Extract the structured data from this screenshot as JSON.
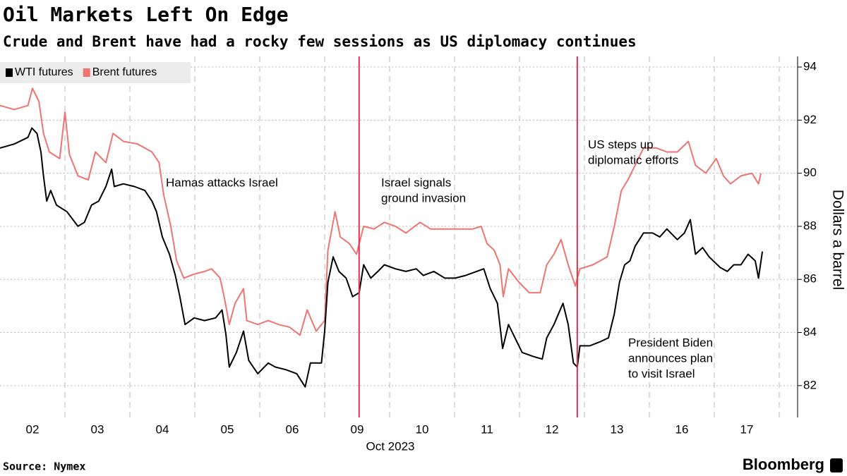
{
  "chart_data": {
    "type": "line",
    "title": "Oil Markets Left On Edge",
    "subtitle": "Crude and Brent have had a rocky few sessions as US diplomacy continues",
    "x_label": "Oct 2023",
    "y_label": "Dollars a barrel",
    "source": "Source: Nymex",
    "brand": "Bloomberg",
    "xlim": [
      0,
      12.25
    ],
    "xticks": [
      {
        "value": 0.5,
        "label": "02"
      },
      {
        "value": 1.5,
        "label": "03"
      },
      {
        "value": 2.5,
        "label": "04"
      },
      {
        "value": 3.5,
        "label": "05"
      },
      {
        "value": 4.5,
        "label": "06"
      },
      {
        "value": 5.5,
        "label": "09"
      },
      {
        "value": 6.5,
        "label": "10"
      },
      {
        "value": 7.5,
        "label": "11"
      },
      {
        "value": 8.5,
        "label": "12"
      },
      {
        "value": 9.5,
        "label": "13"
      },
      {
        "value": 10.5,
        "label": "16"
      },
      {
        "value": 11.5,
        "label": "17"
      }
    ],
    "x_gridlines": [
      1,
      2,
      3,
      4,
      5,
      6,
      7,
      8,
      9,
      10,
      11,
      12
    ],
    "ylim": [
      80.8,
      94.4
    ],
    "yticks": [
      82,
      84,
      86,
      88,
      90,
      92,
      94
    ],
    "grid": true,
    "legend": "top-left",
    "event_lines": [
      5.53,
      8.89
    ],
    "event_color": "#e0324b",
    "annotations": [
      {
        "lines": [
          "Hamas attacks Israel"
        ]
      },
      {
        "lines": [
          "Israel signals",
          "ground invasion"
        ]
      },
      {
        "lines": [
          "US steps up",
          "diplomatic efforts"
        ]
      },
      {
        "lines": [
          "President Biden",
          "announces plan",
          "to visit Israel"
        ]
      }
    ],
    "series": [
      {
        "name": "WTI futures",
        "color": "#000000",
        "x": [
          0,
          0.22,
          0.43,
          0.49,
          0.57,
          0.63,
          0.67,
          0.72,
          0.78,
          0.87,
          1.03,
          1.2,
          1.3,
          1.41,
          1.52,
          1.63,
          1.72,
          1.76,
          1.9,
          2.07,
          2.23,
          2.34,
          2.41,
          2.5,
          2.61,
          2.7,
          2.77,
          2.85,
          2.99,
          3.15,
          3.32,
          3.42,
          3.48,
          3.53,
          3.64,
          3.75,
          3.83,
          3.97,
          4.13,
          4.24,
          4.4,
          4.57,
          4.7,
          4.78,
          4.95,
          5,
          5.05,
          5.13,
          5.22,
          5.33,
          5.43,
          5.53,
          5.6,
          5.71,
          5.82,
          5.92,
          6.09,
          6.25,
          6.41,
          6.52,
          6.68,
          6.85,
          7.01,
          7.17,
          7.34,
          7.45,
          7.55,
          7.66,
          7.74,
          7.83,
          7.93,
          8.04,
          8.21,
          8.35,
          8.42,
          8.53,
          8.67,
          8.75,
          8.83,
          8.89,
          8.93,
          9.08,
          9.24,
          9.37,
          9.46,
          9.54,
          9.62,
          9.7,
          9.78,
          9.91,
          10.05,
          10.16,
          10.27,
          10.43,
          10.54,
          10.63,
          10.71,
          10.82,
          10.92,
          11.09,
          11.2,
          11.3,
          11.41,
          11.52,
          11.63,
          11.68,
          11.74
        ],
        "values": [
          90.95,
          91.1,
          91.35,
          91.7,
          91.5,
          90.8,
          89.9,
          88.95,
          89.35,
          88.8,
          88.55,
          88.0,
          88.15,
          88.8,
          88.95,
          89.5,
          90.15,
          89.5,
          89.6,
          89.5,
          89.35,
          88.95,
          88.55,
          87.6,
          86.95,
          86.15,
          85.35,
          84.3,
          84.55,
          84.45,
          84.55,
          84.85,
          83.9,
          82.7,
          83.25,
          84.05,
          82.95,
          82.45,
          82.85,
          82.7,
          82.6,
          82.45,
          81.95,
          82.85,
          82.85,
          84.05,
          85.9,
          86.85,
          86.3,
          86.05,
          85.35,
          85.5,
          86.55,
          86.05,
          86.3,
          86.55,
          86.4,
          86.3,
          86.4,
          86.15,
          86.3,
          86.05,
          86.05,
          86.15,
          86.3,
          86.4,
          85.65,
          85.1,
          83.4,
          84.3,
          83.8,
          83.25,
          83.1,
          83.0,
          83.8,
          84.3,
          85.1,
          84.3,
          82.85,
          82.7,
          83.5,
          83.5,
          83.65,
          83.8,
          84.7,
          85.9,
          86.55,
          86.7,
          87.25,
          87.75,
          87.75,
          87.6,
          87.9,
          87.5,
          87.75,
          88.25,
          86.95,
          87.2,
          86.85,
          86.45,
          86.3,
          86.55,
          86.55,
          86.95,
          86.7,
          86.05,
          87.05
        ]
      },
      {
        "name": "Brent futures",
        "color": "#f07470",
        "x": [
          0,
          0.22,
          0.43,
          0.5,
          0.6,
          0.67,
          0.76,
          0.92,
          1,
          1.07,
          1.2,
          1.36,
          1.47,
          1.63,
          1.74,
          1.9,
          2.12,
          2.34,
          2.45,
          2.52,
          2.63,
          2.72,
          2.83,
          2.99,
          3.15,
          3.26,
          3.39,
          3.46,
          3.53,
          3.62,
          3.75,
          3.8,
          3.97,
          4.13,
          4.29,
          4.46,
          4.62,
          4.73,
          4.87,
          5,
          5.05,
          5.16,
          5.24,
          5.38,
          5.49,
          5.6,
          5.76,
          5.92,
          6.09,
          6.25,
          6.47,
          6.63,
          6.85,
          7.07,
          7.28,
          7.41,
          7.5,
          7.61,
          7.7,
          7.75,
          7.83,
          7.99,
          8.15,
          8.32,
          8.42,
          8.53,
          8.64,
          8.75,
          8.86,
          8.93,
          9.13,
          9.35,
          9.46,
          9.57,
          9.67,
          9.78,
          9.91,
          10.11,
          10.27,
          10.43,
          10.6,
          10.71,
          10.87,
          11.03,
          11.14,
          11.25,
          11.41,
          11.58,
          11.68,
          11.72
        ],
        "values": [
          92.55,
          92.4,
          92.55,
          93.2,
          92.7,
          91.5,
          90.8,
          90.55,
          92.3,
          90.7,
          89.9,
          89.75,
          90.8,
          90.4,
          91.5,
          91.2,
          91.1,
          90.8,
          90.4,
          89.2,
          88.0,
          86.7,
          86.05,
          86.2,
          86.3,
          86.4,
          86.05,
          85.25,
          84.3,
          85.1,
          85.65,
          84.45,
          84.3,
          84.45,
          84.3,
          84.2,
          83.9,
          84.85,
          84.05,
          84.45,
          87.1,
          88.55,
          87.6,
          87.35,
          86.95,
          88.0,
          87.9,
          88.15,
          88.0,
          87.75,
          88.15,
          87.9,
          87.9,
          87.9,
          87.9,
          88.0,
          87.35,
          87.1,
          86.55,
          85.35,
          86.4,
          85.9,
          85.5,
          85.5,
          86.55,
          86.95,
          87.5,
          86.55,
          85.75,
          86.4,
          86.55,
          86.85,
          88.0,
          89.35,
          89.75,
          90.3,
          90.95,
          90.95,
          90.8,
          90.8,
          91.2,
          90.3,
          90.0,
          90.55,
          89.9,
          89.6,
          89.9,
          90.0,
          89.6,
          90.0
        ]
      }
    ]
  }
}
